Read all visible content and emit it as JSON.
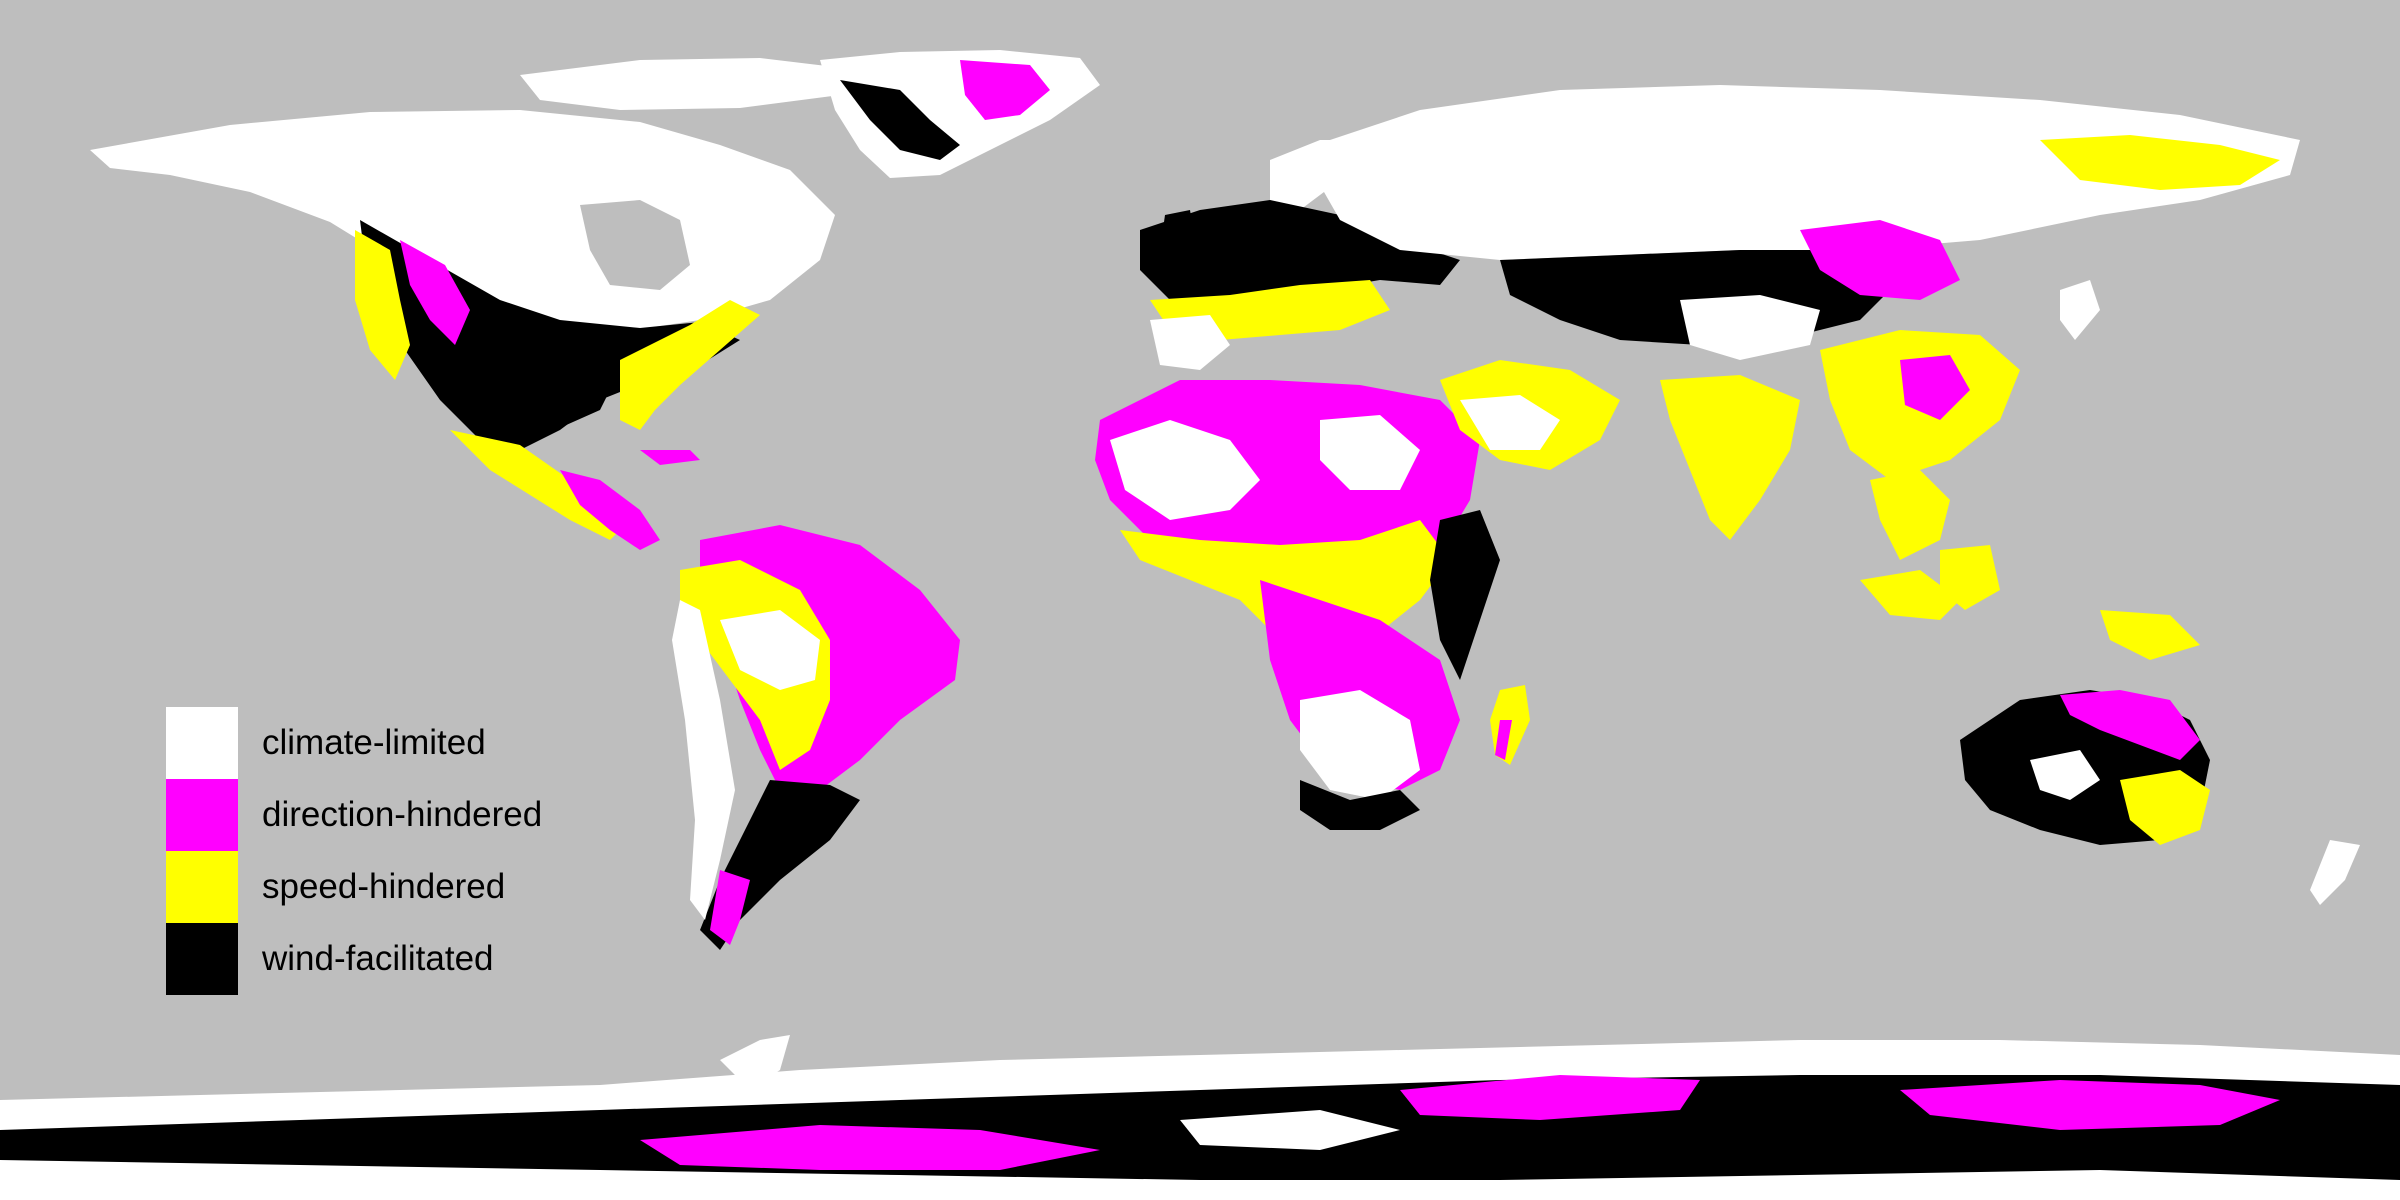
{
  "map": {
    "background_color": "#bebebe",
    "projection": "equirectangular world map",
    "categories": [
      {
        "key": "climate-limited",
        "label": "climate-limited",
        "color": "#ffffff"
      },
      {
        "key": "direction-hindered",
        "label": "direction-hindered",
        "color": "#ff00ff"
      },
      {
        "key": "speed-hindered",
        "label": "speed-hindered",
        "color": "#ffff00"
      },
      {
        "key": "wind-facilitated",
        "label": "wind-facilitated",
        "color": "#000000"
      }
    ]
  },
  "legend": {
    "placement": "left-middle",
    "items": [
      {
        "label": "climate-limited",
        "color": "#ffffff"
      },
      {
        "label": "direction-hindered",
        "color": "#ff00ff"
      },
      {
        "label": "speed-hindered",
        "color": "#ffff00"
      },
      {
        "label": "wind-facilitated",
        "color": "#000000"
      }
    ]
  }
}
